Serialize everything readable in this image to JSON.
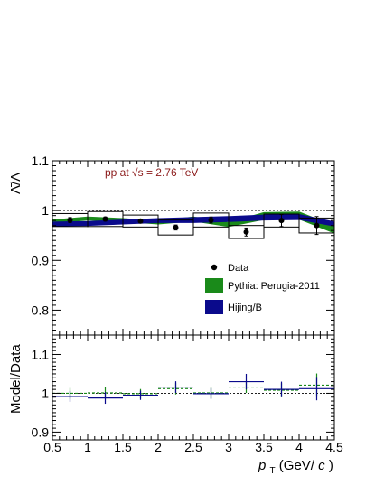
{
  "annotation": "pp at √s = 2.76 TeV",
  "legend": [
    {
      "label": "Data",
      "color": "#000000",
      "marker": "dot"
    },
    {
      "label": "Pythia: Perugia-2011",
      "color": "#1a8a1a",
      "marker": "band"
    },
    {
      "label": "Hijing/B",
      "color": "#0a0a8c",
      "marker": "band"
    }
  ],
  "axes": {
    "xlabel_main": "p",
    "xlabel_sub": "T",
    "xlabel_unit": " (GeV/",
    "xlabel_c": "c",
    "xlabel_close": ")",
    "ylabel_top": "Λ̄/Λ",
    "ylabel_bottom": "Model/Data"
  },
  "chart_data": [
    {
      "type": "scatter",
      "panel": "top",
      "ylabel": "Λ̄/Λ",
      "xlim": [
        0.5,
        4.5
      ],
      "ylim": [
        0.75,
        1.1
      ],
      "xticks": [
        "0.5",
        "1",
        "1.5",
        "2",
        "2.5",
        "3",
        "3.5",
        "4",
        "4.5"
      ],
      "yticks": [
        "0.8",
        "0.9",
        "1",
        "1.1"
      ],
      "reference_line": 1.0,
      "series": [
        {
          "name": "Data",
          "x": [
            0.75,
            1.25,
            1.75,
            2.25,
            2.75,
            3.25,
            3.75,
            4.25
          ],
          "y": [
            0.981,
            0.983,
            0.979,
            0.966,
            0.981,
            0.957,
            0.98,
            0.97
          ],
          "stat_err": [
            0.005,
            0.004,
            0.004,
            0.005,
            0.006,
            0.008,
            0.012,
            0.018
          ],
          "sys_err": [
            0.013,
            0.015,
            0.012,
            0.015,
            0.014,
            0.013,
            0.013,
            0.015
          ],
          "bin_half_width": 0.25
        },
        {
          "name": "Pythia: Perugia-2011",
          "x": [
            0.5,
            1.0,
            1.5,
            2.0,
            2.5,
            3.0,
            3.5,
            4.0,
            4.5
          ],
          "y": [
            0.978,
            0.984,
            0.981,
            0.976,
            0.983,
            0.972,
            0.989,
            0.99,
            0.962
          ],
          "band_half_width": [
            0.003,
            0.003,
            0.003,
            0.003,
            0.004,
            0.004,
            0.007,
            0.007,
            0.007
          ]
        },
        {
          "name": "Hijing/B",
          "x": [
            0.5,
            1.0,
            1.5,
            2.0,
            2.5,
            3.0,
            3.5,
            4.0,
            4.5
          ],
          "y": [
            0.973,
            0.974,
            0.977,
            0.98,
            0.981,
            0.983,
            0.986,
            0.987,
            0.973
          ],
          "band_half_width": [
            0.004,
            0.004,
            0.004,
            0.004,
            0.005,
            0.005,
            0.005,
            0.005,
            0.004
          ]
        }
      ]
    },
    {
      "type": "scatter",
      "panel": "bottom",
      "ylabel": "Model/Data",
      "xlim": [
        0.5,
        4.5
      ],
      "ylim": [
        0.88,
        1.15
      ],
      "xticks": [
        "0.5",
        "1",
        "1.5",
        "2",
        "2.5",
        "3",
        "3.5",
        "4",
        "4.5"
      ],
      "yticks": [
        "0.9",
        "1",
        "1.1"
      ],
      "reference_line": 1.0,
      "series": [
        {
          "name": "Pythia: Perugia-2011",
          "x": [
            0.75,
            1.25,
            1.75,
            2.25,
            2.75,
            3.25,
            3.75,
            4.25
          ],
          "y": [
            1.0,
            1.001,
            0.999,
            1.012,
            1.001,
            1.016,
            1.008,
            1.021
          ],
          "err": [
            0.014,
            0.015,
            0.012,
            0.015,
            0.014,
            0.015,
            0.018,
            0.03
          ],
          "bin_half_width": 0.25
        },
        {
          "name": "Hijing/B",
          "x": [
            0.75,
            1.25,
            1.75,
            2.25,
            2.75,
            3.25,
            3.75,
            4.25
          ],
          "y": [
            0.992,
            0.988,
            0.995,
            1.016,
            0.999,
            1.03,
            1.01,
            1.012
          ],
          "err": [
            0.014,
            0.015,
            0.012,
            0.015,
            0.014,
            0.02,
            0.02,
            0.03
          ],
          "bin_half_width": 0.25
        }
      ]
    }
  ]
}
